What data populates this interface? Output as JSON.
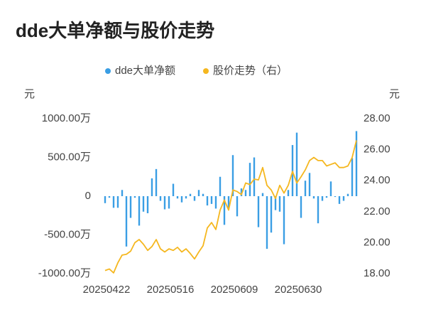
{
  "chart_data": {
    "type": "bar_line",
    "title": "dde大单净额与股价走势",
    "y_label": "元",
    "y2_label": "元",
    "categories": [
      "20250422",
      null,
      null,
      null,
      null,
      null,
      null,
      null,
      null,
      null,
      null,
      null,
      null,
      null,
      null,
      "20250516",
      null,
      null,
      null,
      null,
      null,
      null,
      null,
      null,
      null,
      null,
      null,
      null,
      null,
      null,
      "20250609",
      null,
      null,
      null,
      null,
      null,
      null,
      null,
      null,
      null,
      null,
      null,
      null,
      null,
      null,
      "20250630",
      null,
      null,
      null,
      null,
      null,
      null,
      null,
      null,
      null,
      null,
      null,
      null,
      null,
      null
    ],
    "series": [
      {
        "name": "dde大单净额",
        "type": "bar",
        "color": "#3a9ee4",
        "values": [
          -90,
          -20,
          -150,
          -150,
          80,
          -650,
          -280,
          -20,
          -380,
          -200,
          -220,
          230,
          350,
          -60,
          -170,
          -160,
          160,
          -30,
          -80,
          -30,
          30,
          -60,
          80,
          30,
          -120,
          -100,
          -160,
          250,
          -370,
          -160,
          530,
          -260,
          100,
          80,
          430,
          500,
          -400,
          40,
          -680,
          -470,
          -180,
          -200,
          -620,
          80,
          660,
          820,
          -280,
          200,
          300,
          -30,
          -350,
          -60,
          -20,
          190,
          -10,
          -100,
          -60,
          30,
          490,
          840
        ]
      },
      {
        "name": "股价走势（右）",
        "type": "line",
        "axis": "y2",
        "color": "#f5b71f",
        "values": [
          18.2,
          18.3,
          18.05,
          18.7,
          19.2,
          19.25,
          19.45,
          20.0,
          20.2,
          19.9,
          19.5,
          19.75,
          20.2,
          19.6,
          19.4,
          19.6,
          19.5,
          19.7,
          19.4,
          19.6,
          19.3,
          18.95,
          19.4,
          19.8,
          20.95,
          21.3,
          20.85,
          22.1,
          22.75,
          22.1,
          23.4,
          23.3,
          23.1,
          23.85,
          23.75,
          24.1,
          24.05,
          24.85,
          23.7,
          23.4,
          22.85,
          23.7,
          23.2,
          23.7,
          24.6,
          23.85,
          24.25,
          24.7,
          25.3,
          25.5,
          25.3,
          25.3,
          24.95,
          25.05,
          25.15,
          24.85,
          24.85,
          24.95,
          25.5,
          26.6
        ]
      }
    ],
    "ylim": [
      -1000,
      1000
    ],
    "yticks": [
      {
        "value": 1000,
        "label": "1000.00万"
      },
      {
        "value": 500,
        "label": "500.00万"
      },
      0,
      {
        "value": -500,
        "label": "-500.00万"
      },
      {
        "value": -1000,
        "label": "-1000.00万"
      }
    ],
    "y2lim": [
      18,
      28
    ],
    "y2ticks": [
      {
        "value": 28,
        "label": "28.00"
      },
      {
        "value": 26,
        "label": "26.00"
      },
      {
        "value": 24,
        "label": "24.00"
      },
      {
        "value": 22,
        "label": "22.00"
      },
      {
        "value": 20,
        "label": "20.00"
      },
      {
        "value": 18,
        "label": "18.00"
      }
    ],
    "grid": false
  }
}
